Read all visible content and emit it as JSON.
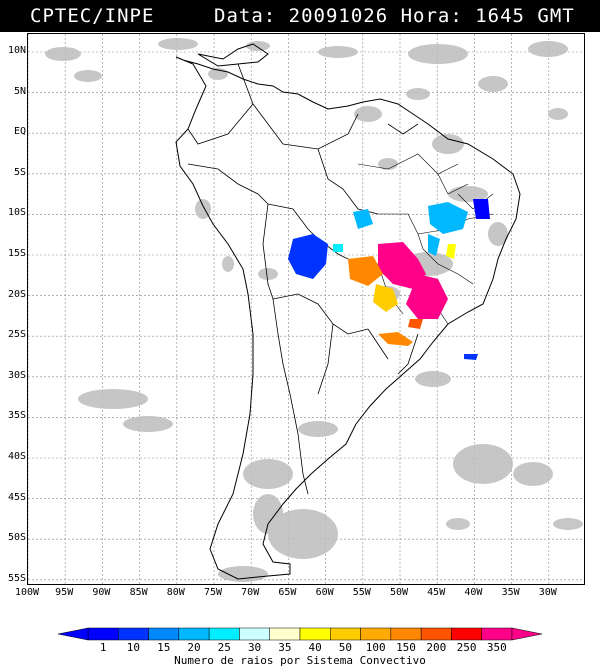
{
  "header": {
    "agency": "CPTEC/INPE",
    "datetime": "Data: 20091026 Hora: 1645 GMT"
  },
  "map": {
    "lat_labels": [
      "10N",
      "5N",
      "EQ",
      "5S",
      "10S",
      "15S",
      "20S",
      "25S",
      "30S",
      "35S",
      "40S",
      "45S",
      "50S",
      "55S"
    ],
    "lon_labels": [
      "100W",
      "95W",
      "90W",
      "85W",
      "80W",
      "75W",
      "70W",
      "65W",
      "60W",
      "55W",
      "50W",
      "45W",
      "40W",
      "35W",
      "30W"
    ]
  },
  "legend": {
    "title": "Numero de raios por Sistema Convectivo",
    "values": [
      "1",
      "10",
      "15",
      "20",
      "25",
      "30",
      "35",
      "40",
      "50",
      "100",
      "150",
      "200",
      "250",
      "350"
    ],
    "colors": [
      "#0000ff",
      "#0033ff",
      "#0088ff",
      "#00b8ff",
      "#00eeff",
      "#ccffff",
      "#ffffcc",
      "#ffff00",
      "#ffcc00",
      "#ffaa00",
      "#ff8800",
      "#ff5500",
      "#ff0000",
      "#ff0088"
    ]
  }
}
